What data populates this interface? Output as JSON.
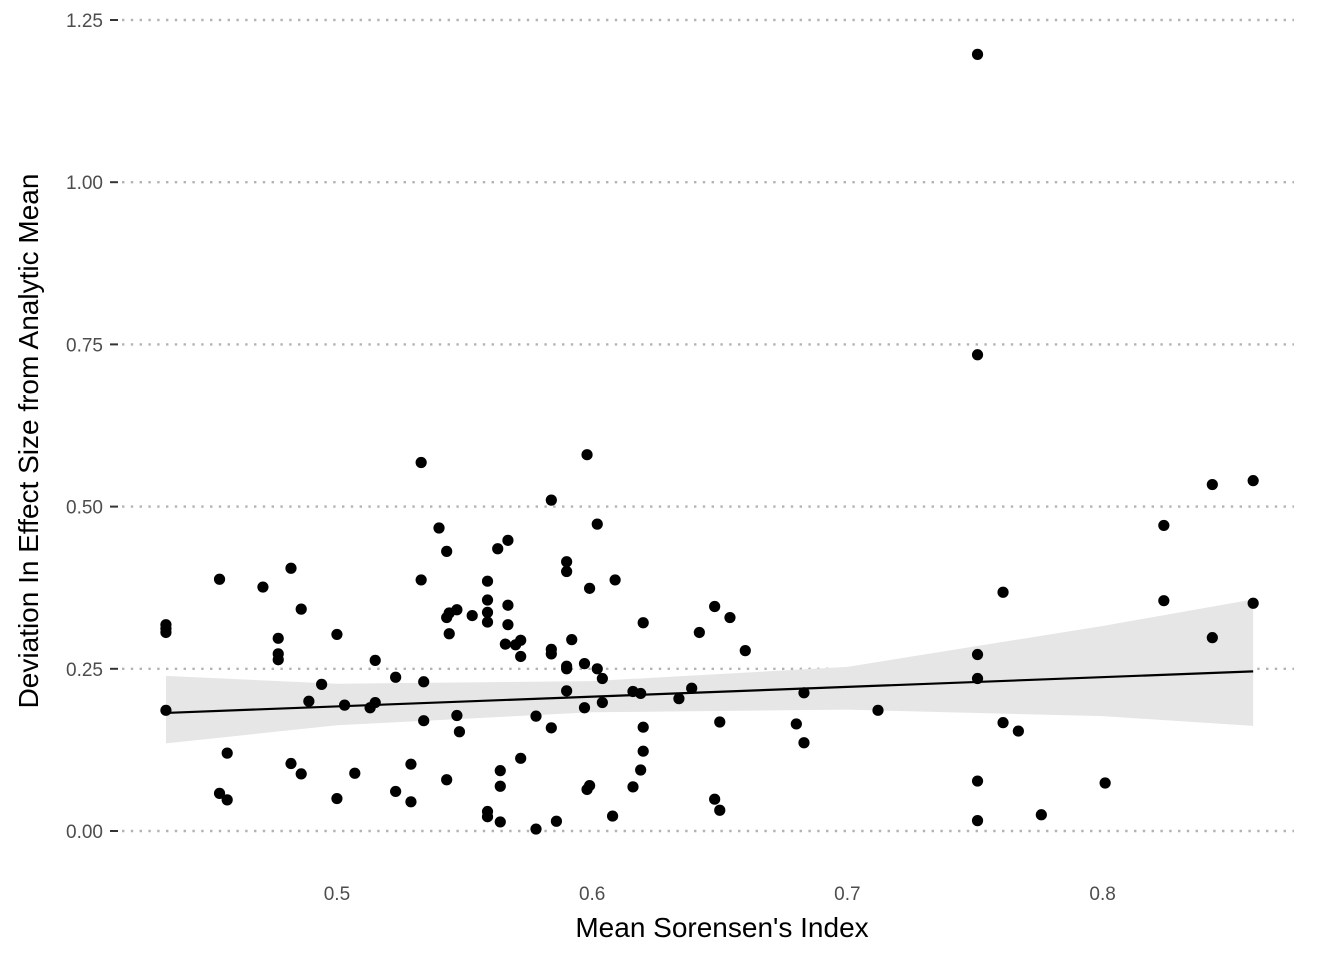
{
  "chart_data": {
    "type": "scatter",
    "title": "",
    "xlabel": "Mean Sorensen's Index",
    "ylabel": "Deviation In Effect Size from Analytic Mean",
    "xlim": [
      0.415,
      0.875
    ],
    "ylim": [
      -0.06,
      1.25
    ],
    "x_ticks": [
      {
        "value": 0.5,
        "label": "0.5"
      },
      {
        "value": 0.6,
        "label": "0.6"
      },
      {
        "value": 0.7,
        "label": "0.7"
      },
      {
        "value": 0.8,
        "label": "0.8"
      }
    ],
    "y_ticks": [
      {
        "value": 0.0,
        "label": "0.00"
      },
      {
        "value": 0.25,
        "label": "0.25"
      },
      {
        "value": 0.5,
        "label": "0.50"
      },
      {
        "value": 0.75,
        "label": "0.75"
      },
      {
        "value": 1.0,
        "label": "1.00"
      },
      {
        "value": 1.25,
        "label": "1.25"
      }
    ],
    "grid": {
      "horizontal": "dotted",
      "vertical": false
    },
    "colors": {
      "points": "#000000",
      "line": "#000000",
      "band": "#e6e6e6",
      "grid": "#b3b3b3"
    },
    "regression": {
      "x": [
        0.433,
        0.859
      ],
      "y": [
        0.182,
        0.246
      ],
      "band_x": [
        0.433,
        0.5,
        0.6,
        0.7,
        0.8,
        0.859
      ],
      "band_lower": [
        0.135,
        0.163,
        0.183,
        0.187,
        0.177,
        0.162
      ],
      "band_upper": [
        0.239,
        0.227,
        0.231,
        0.253,
        0.316,
        0.357
      ]
    },
    "points": [
      [
        0.433,
        0.318
      ],
      [
        0.433,
        0.312
      ],
      [
        0.433,
        0.306
      ],
      [
        0.433,
        0.186
      ],
      [
        0.454,
        0.388
      ],
      [
        0.454,
        0.058
      ],
      [
        0.457,
        0.12
      ],
      [
        0.457,
        0.048
      ],
      [
        0.471,
        0.376
      ],
      [
        0.477,
        0.297
      ],
      [
        0.477,
        0.273
      ],
      [
        0.477,
        0.264
      ],
      [
        0.482,
        0.405
      ],
      [
        0.482,
        0.104
      ],
      [
        0.486,
        0.342
      ],
      [
        0.486,
        0.088
      ],
      [
        0.489,
        0.2
      ],
      [
        0.494,
        0.226
      ],
      [
        0.5,
        0.303
      ],
      [
        0.5,
        0.05
      ],
      [
        0.503,
        0.194
      ],
      [
        0.507,
        0.089
      ],
      [
        0.513,
        0.19
      ],
      [
        0.515,
        0.263
      ],
      [
        0.515,
        0.198
      ],
      [
        0.523,
        0.237
      ],
      [
        0.523,
        0.061
      ],
      [
        0.529,
        0.103
      ],
      [
        0.529,
        0.045
      ],
      [
        0.533,
        0.568
      ],
      [
        0.533,
        0.387
      ],
      [
        0.534,
        0.23
      ],
      [
        0.534,
        0.17
      ],
      [
        0.54,
        0.467
      ],
      [
        0.543,
        0.431
      ],
      [
        0.543,
        0.329
      ],
      [
        0.543,
        0.079
      ],
      [
        0.544,
        0.336
      ],
      [
        0.544,
        0.304
      ],
      [
        0.547,
        0.341
      ],
      [
        0.547,
        0.178
      ],
      [
        0.548,
        0.153
      ],
      [
        0.553,
        0.332
      ],
      [
        0.559,
        0.385
      ],
      [
        0.559,
        0.356
      ],
      [
        0.559,
        0.337
      ],
      [
        0.559,
        0.322
      ],
      [
        0.559,
        0.03
      ],
      [
        0.559,
        0.022
      ],
      [
        0.563,
        0.435
      ],
      [
        0.564,
        0.093
      ],
      [
        0.564,
        0.069
      ],
      [
        0.564,
        0.014
      ],
      [
        0.566,
        0.288
      ],
      [
        0.567,
        0.448
      ],
      [
        0.567,
        0.348
      ],
      [
        0.567,
        0.318
      ],
      [
        0.57,
        0.287
      ],
      [
        0.572,
        0.294
      ],
      [
        0.572,
        0.269
      ],
      [
        0.572,
        0.112
      ],
      [
        0.578,
        0.177
      ],
      [
        0.578,
        0.003
      ],
      [
        0.584,
        0.51
      ],
      [
        0.584,
        0.28
      ],
      [
        0.584,
        0.273
      ],
      [
        0.584,
        0.159
      ],
      [
        0.586,
        0.015
      ],
      [
        0.59,
        0.415
      ],
      [
        0.59,
        0.4
      ],
      [
        0.59,
        0.254
      ],
      [
        0.59,
        0.25
      ],
      [
        0.59,
        0.216
      ],
      [
        0.592,
        0.295
      ],
      [
        0.597,
        0.258
      ],
      [
        0.597,
        0.19
      ],
      [
        0.598,
        0.58
      ],
      [
        0.598,
        0.064
      ],
      [
        0.599,
        0.374
      ],
      [
        0.599,
        0.07
      ],
      [
        0.602,
        0.473
      ],
      [
        0.602,
        0.25
      ],
      [
        0.604,
        0.235
      ],
      [
        0.604,
        0.198
      ],
      [
        0.608,
        0.023
      ],
      [
        0.609,
        0.387
      ],
      [
        0.616,
        0.215
      ],
      [
        0.616,
        0.068
      ],
      [
        0.619,
        0.212
      ],
      [
        0.619,
        0.094
      ],
      [
        0.62,
        0.321
      ],
      [
        0.62,
        0.16
      ],
      [
        0.62,
        0.123
      ],
      [
        0.634,
        0.204
      ],
      [
        0.639,
        0.22
      ],
      [
        0.642,
        0.306
      ],
      [
        0.648,
        0.346
      ],
      [
        0.648,
        0.049
      ],
      [
        0.65,
        0.168
      ],
      [
        0.65,
        0.032
      ],
      [
        0.654,
        0.329
      ],
      [
        0.66,
        0.278
      ],
      [
        0.68,
        0.165
      ],
      [
        0.683,
        0.213
      ],
      [
        0.683,
        0.136
      ],
      [
        0.712,
        0.186
      ],
      [
        0.751,
        1.197
      ],
      [
        0.751,
        0.734
      ],
      [
        0.751,
        0.272
      ],
      [
        0.751,
        0.235
      ],
      [
        0.751,
        0.077
      ],
      [
        0.751,
        0.016
      ],
      [
        0.761,
        0.368
      ],
      [
        0.761,
        0.167
      ],
      [
        0.767,
        0.154
      ],
      [
        0.776,
        0.025
      ],
      [
        0.801,
        0.074
      ],
      [
        0.824,
        0.471
      ],
      [
        0.824,
        0.355
      ],
      [
        0.843,
        0.534
      ],
      [
        0.843,
        0.298
      ],
      [
        0.859,
        0.54
      ],
      [
        0.859,
        0.351
      ]
    ]
  }
}
